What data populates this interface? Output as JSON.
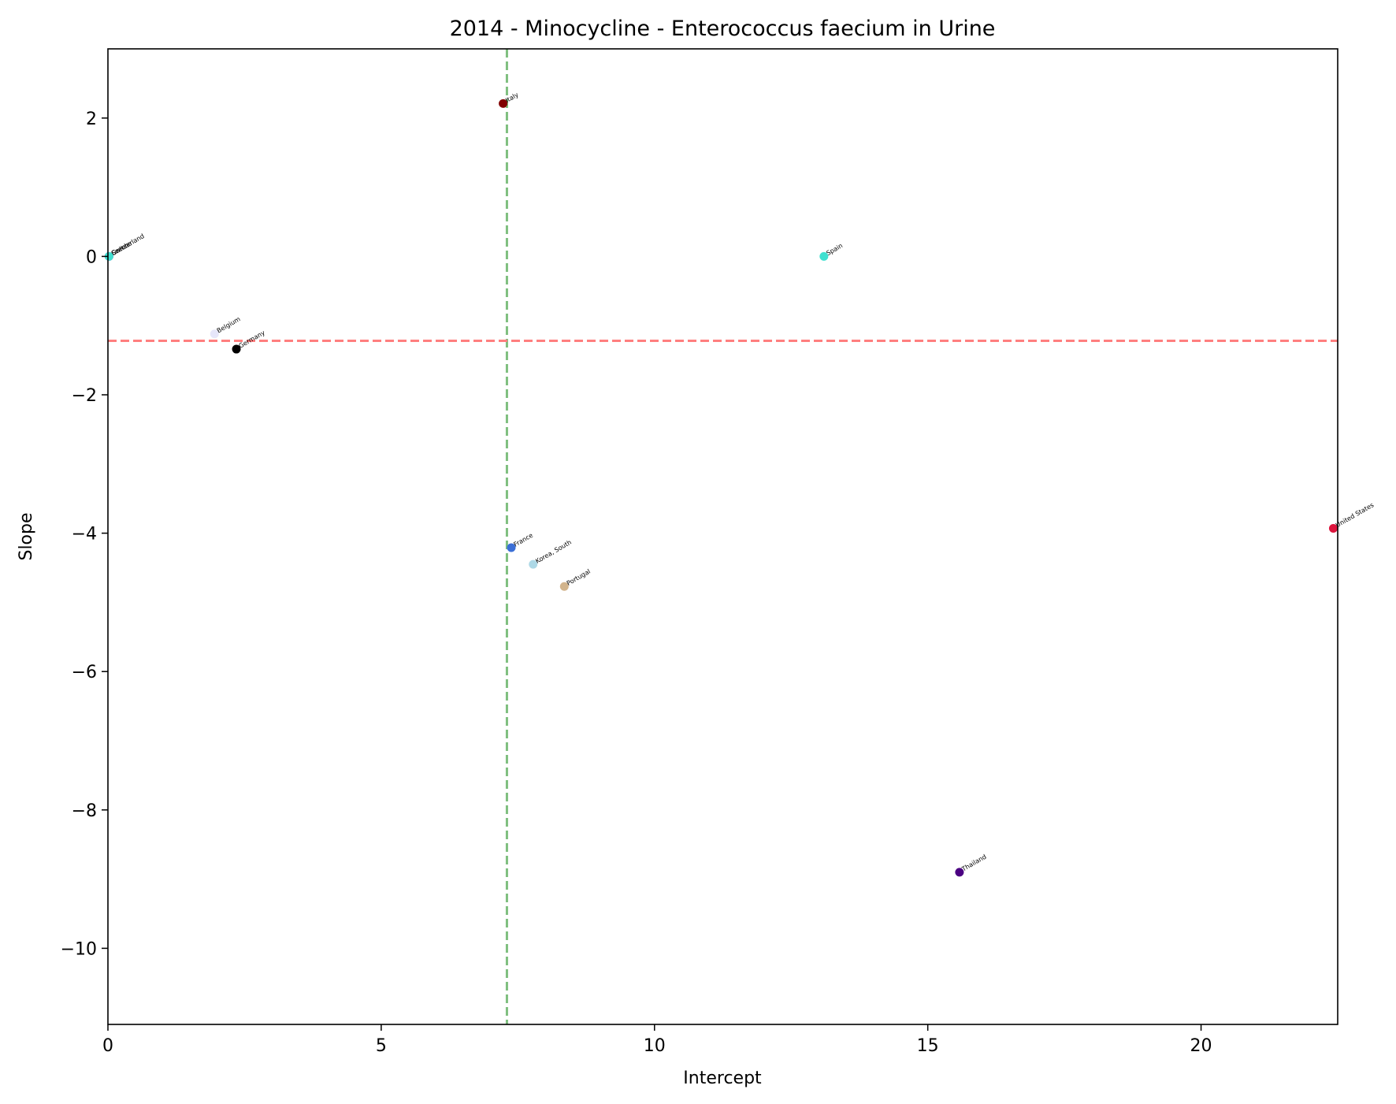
{
  "chart_data": {
    "type": "scatter",
    "title": "2014 - Minocycline - Enterococcus faecium in Urine",
    "xlabel": "Intercept",
    "ylabel": "Slope",
    "xlim": [
      0,
      22.5
    ],
    "ylim": [
      -11.1,
      3.0
    ],
    "xticks": [
      0,
      5,
      10,
      15,
      20
    ],
    "yticks": [
      2,
      0,
      -2,
      -4,
      -6,
      -8,
      -10
    ],
    "grid": false,
    "reference_lines": {
      "vertical_x": 7.3,
      "vertical_color": "#7fbf7f",
      "horizontal_y": -1.22,
      "horizontal_color": "#ff7f7f"
    },
    "points": [
      {
        "label": "Italy",
        "x": 7.23,
        "y": 2.21,
        "color": "#800000"
      },
      {
        "label": "Switzerland",
        "x": 0.02,
        "y": 0.0,
        "color": "#ff69b4"
      },
      {
        "label": "Czech",
        "x": 0.02,
        "y": 0.0,
        "color": "#9370db"
      },
      {
        "label": "Greece",
        "x": 0.02,
        "y": 0.0,
        "color": "#40e0d0"
      },
      {
        "label": "Spain",
        "x": 13.1,
        "y": 0.0,
        "color": "#40e0d0"
      },
      {
        "label": "Belgium",
        "x": 1.95,
        "y": -1.12,
        "color": "#e6e6fa"
      },
      {
        "label": "Germany",
        "x": 2.35,
        "y": -1.34,
        "color": "#000000"
      },
      {
        "label": "France",
        "x": 7.38,
        "y": -4.21,
        "color": "#3b6fd6"
      },
      {
        "label": "Korea, South",
        "x": 7.78,
        "y": -4.45,
        "color": "#add8e6"
      },
      {
        "label": "Portugal",
        "x": 8.35,
        "y": -4.77,
        "color": "#d2b48c"
      },
      {
        "label": "United States",
        "x": 22.42,
        "y": -3.93,
        "color": "#dc143c"
      },
      {
        "label": "Thailand",
        "x": 15.58,
        "y": -8.9,
        "color": "#4b0082"
      }
    ]
  }
}
